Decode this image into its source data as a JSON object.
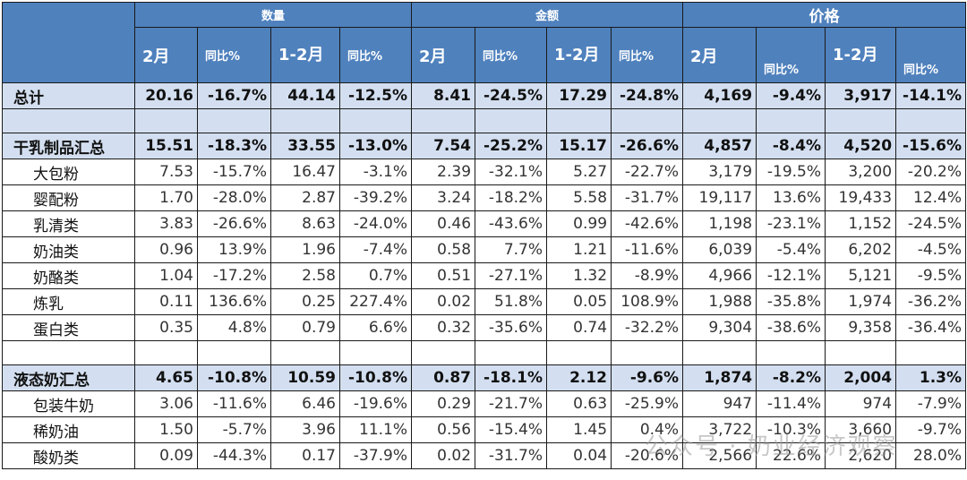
{
  "headers": {
    "group1": "数量",
    "group2": "金额",
    "group3": "价格",
    "month": "2月",
    "yoy": "同比%",
    "cum": "1-2月"
  },
  "rows": [
    {
      "label": "总计",
      "type": "sum",
      "v": [
        "20.16",
        "-16.7%",
        "44.14",
        "-12.5%",
        "8.41",
        "-24.5%",
        "17.29",
        "-24.8%",
        "4,169",
        "-9.4%",
        "3,917",
        "-14.1%"
      ]
    },
    {
      "label": "",
      "type": "blank-blue",
      "v": [
        "",
        "",
        "",
        "",
        "",
        "",
        "",
        "",
        "",
        "",
        "",
        ""
      ]
    },
    {
      "label": "干乳制品汇总",
      "type": "sum",
      "v": [
        "15.51",
        "-18.3%",
        "33.55",
        "-13.0%",
        "7.54",
        "-25.2%",
        "15.17",
        "-26.6%",
        "4,857",
        "-8.4%",
        "4,520",
        "-15.6%"
      ]
    },
    {
      "label": "大包粉",
      "type": "item",
      "v": [
        "7.53",
        "-15.7%",
        "16.47",
        "-3.1%",
        "2.39",
        "-32.1%",
        "5.27",
        "-22.7%",
        "3,179",
        "-19.5%",
        "3,200",
        "-20.2%"
      ]
    },
    {
      "label": "婴配粉",
      "type": "item",
      "v": [
        "1.70",
        "-28.0%",
        "2.87",
        "-39.2%",
        "3.24",
        "-18.2%",
        "5.58",
        "-31.7%",
        "19,117",
        "13.6%",
        "19,433",
        "12.4%"
      ]
    },
    {
      "label": "乳清类",
      "type": "item",
      "v": [
        "3.83",
        "-26.6%",
        "8.63",
        "-24.0%",
        "0.46",
        "-43.6%",
        "0.99",
        "-42.6%",
        "1,198",
        "-23.1%",
        "1,152",
        "-24.5%"
      ]
    },
    {
      "label": "奶油类",
      "type": "item",
      "v": [
        "0.96",
        "13.9%",
        "1.96",
        "-7.4%",
        "0.58",
        "7.7%",
        "1.21",
        "-11.6%",
        "6,039",
        "-5.4%",
        "6,202",
        "-4.5%"
      ]
    },
    {
      "label": "奶酪类",
      "type": "item",
      "v": [
        "1.04",
        "-17.2%",
        "2.58",
        "0.7%",
        "0.51",
        "-27.1%",
        "1.32",
        "-8.9%",
        "4,966",
        "-12.1%",
        "5,121",
        "-9.5%"
      ]
    },
    {
      "label": "炼乳",
      "type": "item",
      "v": [
        "0.11",
        "136.6%",
        "0.25",
        "227.4%",
        "0.02",
        "51.8%",
        "0.05",
        "108.9%",
        "1,988",
        "-35.8%",
        "1,974",
        "-36.2%"
      ]
    },
    {
      "label": "蛋白类",
      "type": "item",
      "v": [
        "0.35",
        "4.8%",
        "0.79",
        "6.6%",
        "0.32",
        "-35.6%",
        "0.74",
        "-32.2%",
        "9,304",
        "-38.6%",
        "9,358",
        "-36.4%"
      ]
    },
    {
      "label": "",
      "type": "blank-white",
      "v": [
        "",
        "",
        "",
        "",
        "",
        "",
        "",
        "",
        "",
        "",
        "",
        ""
      ]
    },
    {
      "label": "液态奶汇总",
      "type": "sum",
      "v": [
        "4.65",
        "-10.8%",
        "10.59",
        "-10.8%",
        "0.87",
        "-18.1%",
        "2.12",
        "-9.6%",
        "1,874",
        "-8.2%",
        "2,004",
        "1.3%"
      ]
    },
    {
      "label": "包装牛奶",
      "type": "item",
      "v": [
        "3.06",
        "-11.6%",
        "6.46",
        "-19.6%",
        "0.29",
        "-21.7%",
        "0.63",
        "-25.9%",
        "947",
        "-11.4%",
        "974",
        "-7.9%"
      ]
    },
    {
      "label": "稀奶油",
      "type": "item",
      "v": [
        "1.50",
        "-5.7%",
        "3.96",
        "11.1%",
        "0.56",
        "-15.4%",
        "1.45",
        "0.4%",
        "3,722",
        "-10.3%",
        "3,660",
        "-9.7%"
      ]
    },
    {
      "label": "酸奶类",
      "type": "item",
      "v": [
        "0.09",
        "-44.3%",
        "0.17",
        "-37.9%",
        "0.02",
        "-31.7%",
        "0.04",
        "-20.6%",
        "2,566",
        "22.6%",
        "2,620",
        "28.0%"
      ]
    }
  ],
  "watermark": "公众号 · 奶业经济观察"
}
